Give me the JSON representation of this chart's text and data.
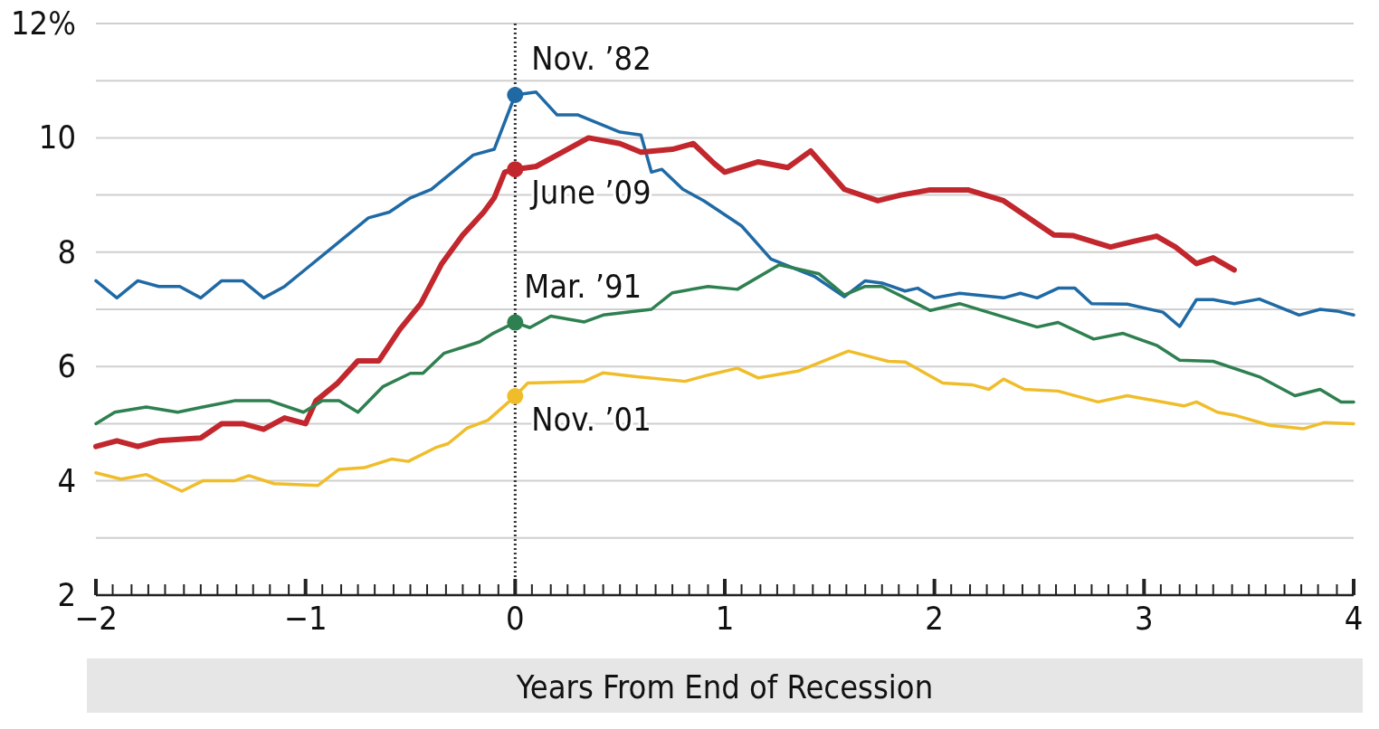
{
  "chart_data": {
    "type": "line",
    "xlabel": "Years From End of Recession",
    "xlim": [
      -2,
      4
    ],
    "ylim": [
      2,
      12
    ],
    "xticks": [
      -2,
      {
        "value": -1.92,
        "label": null
      },
      {
        "value": -1.83,
        "label": null
      },
      {
        "value": -1.75,
        "label": null
      },
      {
        "value": -1.67,
        "label": null
      },
      {
        "value": -1.58,
        "label": null
      },
      {
        "value": -1.5,
        "label": null
      },
      {
        "value": -1.42,
        "label": null
      },
      {
        "value": -1.33,
        "label": null
      },
      {
        "value": -1.25,
        "label": null
      },
      {
        "value": -1.17,
        "label": null
      },
      {
        "value": -1.08,
        "label": null
      },
      -1,
      {
        "value": -0.92,
        "label": null
      },
      {
        "value": -0.83,
        "label": null
      },
      {
        "value": -0.75,
        "label": null
      },
      {
        "value": -0.67,
        "label": null
      },
      {
        "value": -0.58,
        "label": null
      },
      {
        "value": -0.5,
        "label": null
      },
      {
        "value": -0.42,
        "label": null
      },
      {
        "value": -0.33,
        "label": null
      },
      {
        "value": -0.25,
        "label": null
      },
      {
        "value": -0.17,
        "label": null
      },
      {
        "value": -0.08,
        "label": null
      },
      0,
      {
        "value": 0.08,
        "label": null
      },
      {
        "value": 0.17,
        "label": null
      },
      {
        "value": 0.25,
        "label": null
      },
      {
        "value": 0.33,
        "label": null
      },
      {
        "value": 0.42,
        "label": null
      },
      {
        "value": 0.5,
        "label": null
      },
      {
        "value": 0.58,
        "label": null
      },
      {
        "value": 0.67,
        "label": null
      },
      {
        "value": 0.75,
        "label": null
      },
      {
        "value": 0.83,
        "label": null
      },
      {
        "value": 0.92,
        "label": null
      },
      1,
      {
        "value": 1.08,
        "label": null
      },
      {
        "value": 1.17,
        "label": null
      },
      {
        "value": 1.25,
        "label": null
      },
      {
        "value": 1.33,
        "label": null
      },
      {
        "value": 1.42,
        "label": null
      },
      {
        "value": 1.5,
        "label": null
      },
      {
        "value": 1.58,
        "label": null
      },
      {
        "value": 1.67,
        "label": null
      },
      {
        "value": 1.75,
        "label": null
      },
      {
        "value": 1.83,
        "label": null
      },
      {
        "value": 1.92,
        "label": null
      },
      2,
      {
        "value": 2.08,
        "label": null
      },
      {
        "value": 2.17,
        "label": null
      },
      {
        "value": 2.25,
        "label": null
      },
      {
        "value": 2.33,
        "label": null
      },
      {
        "value": 2.42,
        "label": null
      },
      {
        "value": 2.5,
        "label": null
      },
      {
        "value": 2.58,
        "label": null
      },
      {
        "value": 2.67,
        "label": null
      },
      {
        "value": 2.75,
        "label": null
      },
      {
        "value": 2.83,
        "label": null
      },
      {
        "value": 2.92,
        "label": null
      },
      3,
      {
        "value": 3.08,
        "label": null
      },
      {
        "value": 3.17,
        "label": null
      },
      {
        "value": 3.25,
        "label": null
      },
      {
        "value": 3.33,
        "label": null
      },
      {
        "value": 3.42,
        "label": null
      },
      {
        "value": 3.5,
        "label": null
      },
      {
        "value": 3.58,
        "label": null
      },
      {
        "value": 3.67,
        "label": null
      },
      {
        "value": 3.75,
        "label": null
      },
      {
        "value": 3.83,
        "label": null
      },
      {
        "value": 3.92,
        "label": null
      },
      4
    ],
    "yticks": [
      2,
      {
        "value": 3,
        "label": null
      },
      4,
      {
        "value": 5,
        "label": null
      },
      6,
      {
        "value": 7,
        "label": null
      },
      8,
      {
        "value": 9,
        "label": null
      },
      10,
      {
        "value": 11,
        "label": null
      },
      {
        "value": 12,
        "label": "12%"
      }
    ],
    "grid": "y",
    "line_style": "solid",
    "ref_lines": [
      {
        "axis": "x",
        "value": 0,
        "label": null,
        "color": "#333333",
        "line_style": "dotted"
      }
    ],
    "series": [
      {
        "name": "Nov. ’82",
        "color": "#1f6aa5",
        "x": [
          -2,
          -1.9,
          -1.8,
          -1.7,
          -1.6,
          -1.5,
          -1.4,
          -1.3,
          -1.2,
          -1.1,
          -1.0,
          -0.9,
          -0.8,
          -0.7,
          -0.6,
          -0.5,
          -0.4,
          -0.3,
          -0.2,
          -0.1,
          0,
          0.1,
          0.2,
          0.3,
          0.4,
          0.5,
          0.6,
          0.65,
          0.7,
          0.8,
          0.9,
          1.08,
          1.22,
          1.43,
          1.57,
          1.67,
          1.75,
          1.86,
          1.92,
          2.0,
          2.12,
          2.33,
          2.41,
          2.49,
          2.59,
          2.67,
          2.75,
          2.92,
          3.09,
          3.17,
          3.25,
          3.33,
          3.43,
          3.55,
          3.74,
          3.84,
          3.92,
          4.0
        ],
        "values": [
          7.5,
          7.2,
          7.5,
          7.4,
          7.4,
          7.2,
          7.5,
          7.5,
          7.2,
          7.4,
          7.7,
          8.0,
          8.3,
          8.6,
          8.7,
          8.95,
          9.1,
          9.4,
          9.7,
          9.8,
          10.75,
          10.8,
          10.4,
          10.4,
          10.25,
          10.1,
          10.05,
          9.4,
          9.45,
          9.1,
          8.9,
          8.46,
          7.88,
          7.57,
          7.22,
          7.5,
          7.46,
          7.32,
          7.37,
          7.2,
          7.28,
          7.2,
          7.28,
          7.2,
          7.37,
          7.37,
          7.1,
          7.09,
          6.95,
          6.7,
          7.17,
          7.17,
          7.1,
          7.18,
          6.9,
          7.0,
          6.97,
          6.9
        ]
      },
      {
        "name": "June ’09",
        "color": "#c1272d",
        "x": [
          -2,
          -1.9,
          -1.8,
          -1.7,
          -1.5,
          -1.4,
          -1.3,
          -1.2,
          -1.1,
          -1.0,
          -0.95,
          -0.85,
          -0.75,
          -0.65,
          -0.55,
          -0.45,
          -0.35,
          -0.25,
          -0.15,
          -0.1,
          -0.05,
          0,
          0.1,
          0.2,
          0.35,
          0.5,
          0.6,
          0.75,
          0.85,
          0.95,
          1.0,
          1.16,
          1.3,
          1.41,
          1.57,
          1.73,
          1.84,
          1.98,
          2.16,
          2.33,
          2.57,
          2.66,
          2.84,
          2.94,
          3.06,
          3.15,
          3.25,
          3.33,
          3.43
        ],
        "values": [
          4.6,
          4.7,
          4.6,
          4.7,
          4.75,
          5.0,
          5.0,
          4.9,
          5.1,
          5.0,
          5.4,
          5.7,
          6.1,
          6.1,
          6.65,
          7.1,
          7.8,
          8.3,
          8.7,
          8.95,
          9.4,
          9.45,
          9.5,
          9.7,
          10.0,
          9.9,
          9.75,
          9.8,
          9.9,
          9.55,
          9.4,
          9.58,
          9.48,
          9.77,
          9.1,
          8.9,
          9.0,
          9.09,
          9.09,
          8.9,
          8.3,
          8.29,
          8.09,
          8.18,
          8.28,
          8.09,
          7.8,
          7.9,
          7.69
        ]
      },
      {
        "name": "Mar. ’91",
        "color": "#2e8050",
        "x": [
          -2,
          -1.91,
          -1.76,
          -1.61,
          -1.49,
          -1.34,
          -1.17,
          -1.01,
          -0.92,
          -0.84,
          -0.75,
          -0.63,
          -0.5,
          -0.44,
          -0.34,
          -0.17,
          -0.11,
          0,
          0.07,
          0.17,
          0.33,
          0.42,
          0.65,
          0.75,
          0.92,
          1.06,
          1.26,
          1.45,
          1.57,
          1.67,
          1.75,
          1.98,
          2.12,
          2.49,
          2.59,
          2.76,
          2.9,
          3.06,
          3.17,
          3.33,
          3.55,
          3.72,
          3.84,
          3.94,
          4.0
        ],
        "values": [
          5.0,
          5.2,
          5.29,
          5.2,
          5.29,
          5.4,
          5.4,
          5.2,
          5.4,
          5.4,
          5.2,
          5.65,
          5.88,
          5.88,
          6.23,
          6.43,
          6.57,
          6.77,
          6.68,
          6.88,
          6.78,
          6.9,
          7.0,
          7.29,
          7.4,
          7.35,
          7.78,
          7.62,
          7.25,
          7.4,
          7.4,
          6.98,
          7.1,
          6.69,
          6.77,
          6.48,
          6.58,
          6.37,
          6.11,
          6.09,
          5.82,
          5.49,
          5.6,
          5.38,
          5.38
        ]
      },
      {
        "name": "Nov. ’01",
        "color": "#f0bd2a",
        "x": [
          -2,
          -1.88,
          -1.76,
          -1.59,
          -1.49,
          -1.34,
          -1.27,
          -1.15,
          -0.94,
          -0.84,
          -0.72,
          -0.59,
          -0.51,
          -0.38,
          -0.32,
          -0.23,
          -0.13,
          0,
          0.06,
          0.33,
          0.42,
          0.58,
          0.81,
          0.92,
          1.06,
          1.16,
          1.35,
          1.59,
          1.78,
          1.86,
          2.04,
          2.18,
          2.26,
          2.33,
          2.43,
          2.59,
          2.78,
          2.92,
          3.19,
          3.25,
          3.35,
          3.43,
          3.6,
          3.76,
          3.86,
          4.0
        ],
        "values": [
          4.14,
          4.03,
          4.11,
          3.82,
          4.0,
          4.0,
          4.09,
          3.95,
          3.92,
          4.2,
          4.23,
          4.38,
          4.34,
          4.58,
          4.65,
          4.92,
          5.06,
          5.48,
          5.71,
          5.74,
          5.89,
          5.82,
          5.74,
          5.85,
          5.97,
          5.8,
          5.92,
          6.27,
          6.09,
          6.08,
          5.71,
          5.68,
          5.6,
          5.78,
          5.6,
          5.57,
          5.38,
          5.49,
          5.31,
          5.38,
          5.2,
          5.15,
          4.97,
          4.91,
          5.02,
          5.0
        ]
      },
      {
        "type": "scatter",
        "marker": "circle",
        "x": [
          0,
          0,
          0,
          0
        ],
        "values": [
          10.75,
          9.45,
          6.77,
          5.48
        ],
        "colors": [
          "#1f6aa5",
          "#c1272d",
          "#2e8050",
          "#f0bd2a"
        ]
      }
    ]
  }
}
